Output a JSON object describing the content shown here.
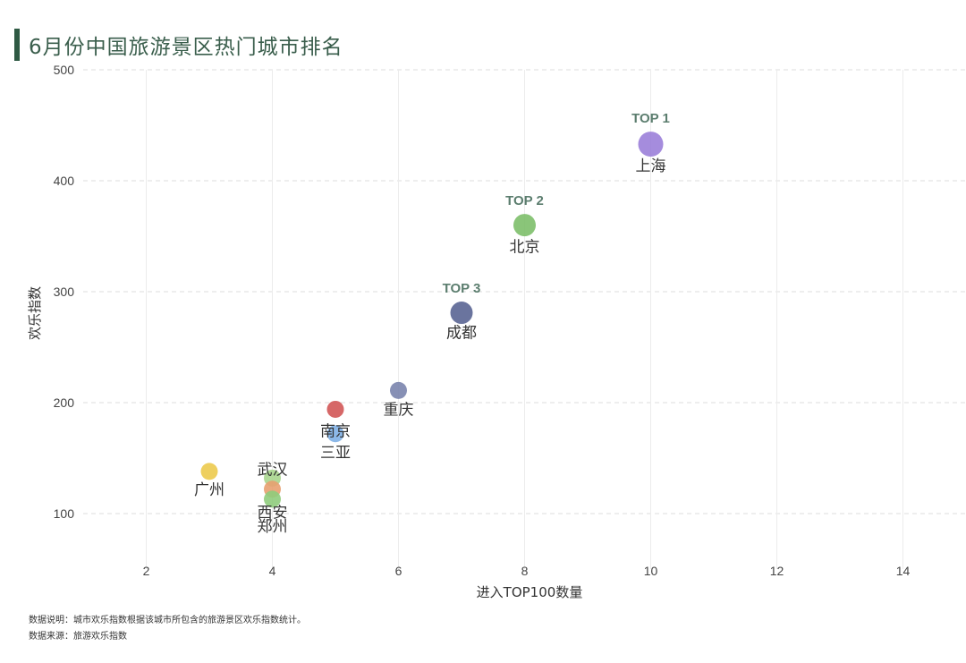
{
  "title": "6月份中国旅游景区热门城市排名",
  "notes": {
    "description": "数据说明：城市欢乐指数根据该城市所包含的旅游景区欢乐指数统计。",
    "source": "数据来源：旅游欢乐指数"
  },
  "chart_data": {
    "type": "scatter",
    "title": "6月份中国旅游景区热门城市排名",
    "xlabel": "进入TOP100数量",
    "ylabel": "欢乐指数",
    "xlim": [
      1,
      15
    ],
    "ylim": [
      50,
      500
    ],
    "xticks": [
      2,
      4,
      6,
      8,
      10,
      12,
      14
    ],
    "yticks": [
      100,
      200,
      300,
      400,
      500
    ],
    "grid": true,
    "points": [
      {
        "name": "上海",
        "x": 10,
        "y": 433,
        "color": "#9b7fd9",
        "rank": "TOP 1",
        "size": "large"
      },
      {
        "name": "北京",
        "x": 8,
        "y": 360,
        "color": "#7dbf6a",
        "rank": "TOP 2",
        "size": "medium"
      },
      {
        "name": "成都",
        "x": 7,
        "y": 281,
        "color": "#5a6594",
        "rank": "TOP 3",
        "size": "medium"
      },
      {
        "name": "重庆",
        "x": 6,
        "y": 211,
        "color": "#7a84ad",
        "rank": "",
        "size": "small"
      },
      {
        "name": "南京",
        "x": 5,
        "y": 194,
        "color": "#d25656",
        "rank": "",
        "size": "small"
      },
      {
        "name": "三亚",
        "x": 5,
        "y": 172,
        "color": "#7fb0e6",
        "rank": "",
        "size": "small"
      },
      {
        "name": "广州",
        "x": 3,
        "y": 138,
        "color": "#ecca4e",
        "rank": "",
        "size": "small"
      },
      {
        "name": "武汉",
        "x": 4,
        "y": 132,
        "color": "#a8d68e",
        "rank": "",
        "size": "small"
      },
      {
        "name": "西安",
        "x": 4,
        "y": 122,
        "color": "#e8a070",
        "rank": "",
        "size": "small"
      },
      {
        "name": "郑州",
        "x": 4,
        "y": 113,
        "color": "#8fcc7c",
        "rank": "",
        "size": "small"
      }
    ]
  }
}
